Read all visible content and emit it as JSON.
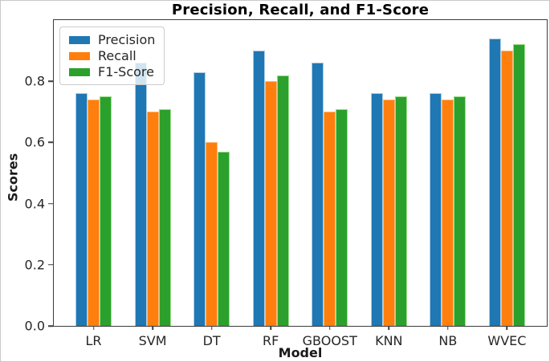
{
  "chart_data": {
    "type": "bar",
    "title": "Precision, Recall, and F1-Score",
    "xlabel": "Model",
    "ylabel": "Scores",
    "categories": [
      "LR",
      "SVM",
      "DT",
      "RF",
      "GBOOST",
      "KNN",
      "NB",
      "WVEC"
    ],
    "series": [
      {
        "name": "Precision",
        "color": "#1f77b4",
        "edge_color": "#aecde1",
        "values": [
          0.76,
          0.86,
          0.83,
          0.9,
          0.86,
          0.76,
          0.76,
          0.94
        ]
      },
      {
        "name": "Recall",
        "color": "#ff7f0e",
        "edge_color": "#ffbb78",
        "values": [
          0.74,
          0.7,
          0.6,
          0.8,
          0.7,
          0.74,
          0.74,
          0.9
        ]
      },
      {
        "name": "F1-Score",
        "color": "#2ca02c",
        "edge_color": "#98df8a",
        "values": [
          0.75,
          0.71,
          0.57,
          0.82,
          0.71,
          0.75,
          0.75,
          0.92
        ]
      }
    ],
    "ylim": [
      0,
      1.0
    ],
    "yticks": [
      "0.0",
      "0.2",
      "0.4",
      "0.6",
      "0.8"
    ],
    "grid": false,
    "legend_position": "upper-left",
    "axis_color": "#3c3c3c",
    "text_color": "#262626"
  }
}
